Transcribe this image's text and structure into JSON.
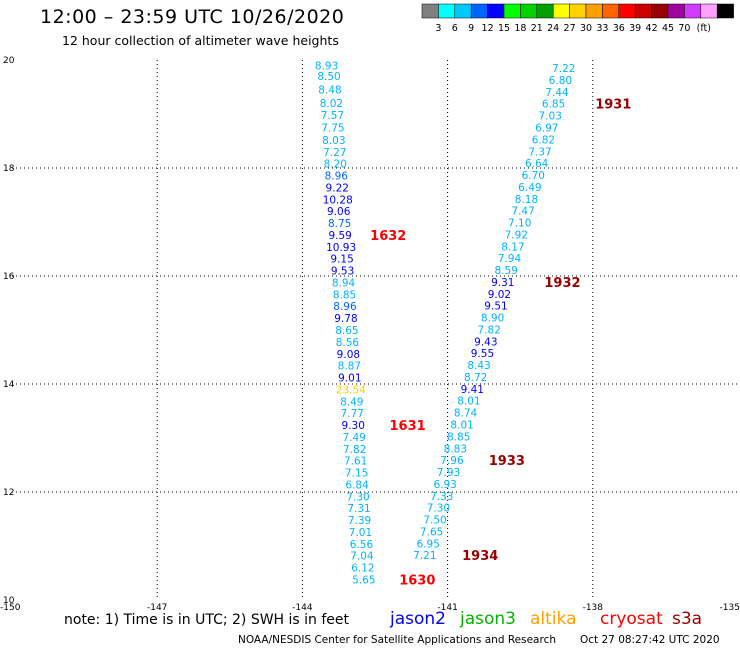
{
  "header": {
    "title": "12:00 – 23:59 UTC 10/26/2020",
    "subtitle": "12 hour collection of altimeter wave heights"
  },
  "colorbar": {
    "unit": "(ft)",
    "labels": [
      "3",
      "6",
      "9",
      "12",
      "15",
      "18",
      "21",
      "24",
      "27",
      "30",
      "33",
      "36",
      "39",
      "42",
      "45",
      "70"
    ],
    "colors": [
      "#808080",
      "#00ffff",
      "#00c8ff",
      "#0064ff",
      "#0000ff",
      "#00ff00",
      "#00d200",
      "#00a000",
      "#ffff00",
      "#ffd200",
      "#ffa000",
      "#ff6400",
      "#ff0000",
      "#c80000",
      "#960000",
      "#a000a0",
      "#d23cff",
      "#ffa0ff",
      "#000000"
    ]
  },
  "footer": {
    "note": "note:  1) Time is in UTC;  2) SWH is in feet",
    "satellites": [
      {
        "name": "jason2",
        "color": "#0000ff"
      },
      {
        "name": "jason3",
        "color": "#00b400"
      },
      {
        "name": "altika",
        "color": "#ffa000"
      },
      {
        "name": "cryosat",
        "color": "#ff0000"
      },
      {
        "name": "s3a",
        "color": "#960000"
      }
    ],
    "credit": "NOAA/NESDIS Center for Satellite Applications and Research",
    "timestamp": "Oct 27 08:27:42 UTC 2020"
  },
  "chart_data": {
    "type": "scatter",
    "xlim": [
      -150,
      -135
    ],
    "ylim": [
      10,
      20
    ],
    "xticks": [
      "-150",
      "-147",
      "-144",
      "-141",
      "-138",
      "-135"
    ],
    "yticks": [
      "10",
      "12",
      "14",
      "16",
      "18",
      "20"
    ],
    "grid": true,
    "points": [
      {
        "x": -143.5,
        "y": 19.9,
        "v": "8.93",
        "c": "#00b4ff"
      },
      {
        "x": -143.45,
        "y": 19.7,
        "v": "8.50",
        "c": "#00b4ff"
      },
      {
        "x": -143.43,
        "y": 19.45,
        "v": "8.48",
        "c": "#00b4ff"
      },
      {
        "x": -143.4,
        "y": 19.2,
        "v": "8.02",
        "c": "#00b4ff"
      },
      {
        "x": -143.38,
        "y": 18.98,
        "v": "7.57",
        "c": "#00b4ff"
      },
      {
        "x": -143.37,
        "y": 18.75,
        "v": "7.75",
        "c": "#00b4ff"
      },
      {
        "x": -143.35,
        "y": 18.52,
        "v": "8.03",
        "c": "#00b4ff"
      },
      {
        "x": -143.33,
        "y": 18.3,
        "v": "7.27",
        "c": "#00b4ff"
      },
      {
        "x": -143.32,
        "y": 18.08,
        "v": "8.20",
        "c": "#00b4ff"
      },
      {
        "x": -143.3,
        "y": 17.86,
        "v": "8.96",
        "c": "#0064ff"
      },
      {
        "x": -143.28,
        "y": 17.64,
        "v": "9.22",
        "c": "#0000ff"
      },
      {
        "x": -143.27,
        "y": 17.42,
        "v": "10.28",
        "c": "#0000ff"
      },
      {
        "x": -143.25,
        "y": 17.2,
        "v": "9.06",
        "c": "#0000ff"
      },
      {
        "x": -143.23,
        "y": 16.98,
        "v": "8.75",
        "c": "#0064ff"
      },
      {
        "x": -143.22,
        "y": 16.76,
        "v": "9.59",
        "c": "#0000ff"
      },
      {
        "x": -143.2,
        "y": 16.54,
        "v": "10.93",
        "c": "#0000ff"
      },
      {
        "x": -143.18,
        "y": 16.32,
        "v": "9.15",
        "c": "#0000ff"
      },
      {
        "x": -143.17,
        "y": 16.1,
        "v": "9.53",
        "c": "#0000ff"
      },
      {
        "x": -143.15,
        "y": 15.88,
        "v": "8.94",
        "c": "#00b4ff"
      },
      {
        "x": -143.13,
        "y": 15.66,
        "v": "8.85",
        "c": "#00b4ff"
      },
      {
        "x": -143.12,
        "y": 15.44,
        "v": "8.96",
        "c": "#0064ff"
      },
      {
        "x": -143.1,
        "y": 15.22,
        "v": "9.78",
        "c": "#0000ff"
      },
      {
        "x": -143.08,
        "y": 15.0,
        "v": "8.65",
        "c": "#00b4ff"
      },
      {
        "x": -143.07,
        "y": 14.78,
        "v": "8.56",
        "c": "#00b4ff"
      },
      {
        "x": -143.05,
        "y": 14.56,
        "v": "9.08",
        "c": "#0000ff"
      },
      {
        "x": -143.03,
        "y": 14.34,
        "v": "8.87",
        "c": "#00b4ff"
      },
      {
        "x": -143.02,
        "y": 14.12,
        "v": "9.01",
        "c": "#0000ff"
      },
      {
        "x": -143.0,
        "y": 13.9,
        "v": "23.54",
        "c": "#ffd200"
      },
      {
        "x": -142.98,
        "y": 13.68,
        "v": "8.49",
        "c": "#00b4ff"
      },
      {
        "x": -142.97,
        "y": 13.46,
        "v": "7.77",
        "c": "#00b4ff"
      },
      {
        "x": -142.95,
        "y": 13.24,
        "v": "9.30",
        "c": "#0000ff"
      },
      {
        "x": -142.93,
        "y": 13.02,
        "v": "7.49",
        "c": "#00b4ff"
      },
      {
        "x": -142.92,
        "y": 12.8,
        "v": "7.82",
        "c": "#00b4ff"
      },
      {
        "x": -142.9,
        "y": 12.58,
        "v": "7.61",
        "c": "#00b4ff"
      },
      {
        "x": -142.88,
        "y": 12.36,
        "v": "7.15",
        "c": "#00b4ff"
      },
      {
        "x": -142.87,
        "y": 12.14,
        "v": "6.84",
        "c": "#00b4ff"
      },
      {
        "x": -142.85,
        "y": 11.92,
        "v": "7.30",
        "c": "#00b4ff"
      },
      {
        "x": -142.83,
        "y": 11.7,
        "v": "7.31",
        "c": "#00b4ff"
      },
      {
        "x": -142.82,
        "y": 11.48,
        "v": "7.39",
        "c": "#00b4ff"
      },
      {
        "x": -142.8,
        "y": 11.26,
        "v": "7.01",
        "c": "#00b4ff"
      },
      {
        "x": -142.78,
        "y": 11.04,
        "v": "6.56",
        "c": "#00b4ff"
      },
      {
        "x": -142.77,
        "y": 10.82,
        "v": "7.04",
        "c": "#00b4ff"
      },
      {
        "x": -142.75,
        "y": 10.6,
        "v": "6.12",
        "c": "#00b4ff"
      },
      {
        "x": -142.73,
        "y": 10.38,
        "v": "5.65",
        "c": "#00b4ff"
      },
      {
        "x": -138.6,
        "y": 19.85,
        "v": "7.22",
        "c": "#00b4ff"
      },
      {
        "x": -138.67,
        "y": 19.63,
        "v": "6.80",
        "c": "#00b4ff"
      },
      {
        "x": -138.74,
        "y": 19.41,
        "v": "7.44",
        "c": "#00b4ff"
      },
      {
        "x": -138.81,
        "y": 19.19,
        "v": "6.85",
        "c": "#00b4ff"
      },
      {
        "x": -138.88,
        "y": 18.97,
        "v": "7.03",
        "c": "#00b4ff"
      },
      {
        "x": -138.95,
        "y": 18.75,
        "v": "6.97",
        "c": "#00b4ff"
      },
      {
        "x": -139.02,
        "y": 18.53,
        "v": "6.82",
        "c": "#00b4ff"
      },
      {
        "x": -139.09,
        "y": 18.31,
        "v": "7.37",
        "c": "#00b4ff"
      },
      {
        "x": -139.16,
        "y": 18.09,
        "v": "6.64",
        "c": "#00b4ff"
      },
      {
        "x": -139.23,
        "y": 17.87,
        "v": "6.70",
        "c": "#00b4ff"
      },
      {
        "x": -139.3,
        "y": 17.65,
        "v": "6.49",
        "c": "#00b4ff"
      },
      {
        "x": -139.37,
        "y": 17.43,
        "v": "8.18",
        "c": "#00b4ff"
      },
      {
        "x": -139.44,
        "y": 17.21,
        "v": "7.47",
        "c": "#00b4ff"
      },
      {
        "x": -139.51,
        "y": 16.99,
        "v": "7.10",
        "c": "#00b4ff"
      },
      {
        "x": -139.58,
        "y": 16.77,
        "v": "7.92",
        "c": "#00b4ff"
      },
      {
        "x": -139.65,
        "y": 16.55,
        "v": "8.17",
        "c": "#00b4ff"
      },
      {
        "x": -139.72,
        "y": 16.33,
        "v": "7.94",
        "c": "#00b4ff"
      },
      {
        "x": -139.79,
        "y": 16.11,
        "v": "8.59",
        "c": "#00b4ff"
      },
      {
        "x": -139.86,
        "y": 15.89,
        "v": "9.31",
        "c": "#0000ff"
      },
      {
        "x": -139.93,
        "y": 15.67,
        "v": "9.02",
        "c": "#0000ff"
      },
      {
        "x": -140.0,
        "y": 15.45,
        "v": "9.51",
        "c": "#0000ff"
      },
      {
        "x": -140.07,
        "y": 15.23,
        "v": "8.90",
        "c": "#00b4ff"
      },
      {
        "x": -140.14,
        "y": 15.01,
        "v": "7.82",
        "c": "#00b4ff"
      },
      {
        "x": -140.21,
        "y": 14.79,
        "v": "9.43",
        "c": "#0000ff"
      },
      {
        "x": -140.28,
        "y": 14.57,
        "v": "9.55",
        "c": "#0000ff"
      },
      {
        "x": -140.35,
        "y": 14.35,
        "v": "8.43",
        "c": "#00b4ff"
      },
      {
        "x": -140.42,
        "y": 14.13,
        "v": "8.72",
        "c": "#00b4ff"
      },
      {
        "x": -140.49,
        "y": 13.91,
        "v": "9.41",
        "c": "#0000ff"
      },
      {
        "x": -140.56,
        "y": 13.69,
        "v": "8.01",
        "c": "#00b4ff"
      },
      {
        "x": -140.63,
        "y": 13.47,
        "v": "8.74",
        "c": "#00b4ff"
      },
      {
        "x": -140.7,
        "y": 13.25,
        "v": "8.01",
        "c": "#00b4ff"
      },
      {
        "x": -140.77,
        "y": 13.03,
        "v": "8.85",
        "c": "#00b4ff"
      },
      {
        "x": -140.84,
        "y": 12.81,
        "v": "8.83",
        "c": "#00b4ff"
      },
      {
        "x": -140.91,
        "y": 12.59,
        "v": "7.96",
        "c": "#00b4ff"
      },
      {
        "x": -140.98,
        "y": 12.37,
        "v": "7.93",
        "c": "#00b4ff"
      },
      {
        "x": -141.05,
        "y": 12.15,
        "v": "6.93",
        "c": "#00b4ff"
      },
      {
        "x": -141.12,
        "y": 11.93,
        "v": "7.33",
        "c": "#00b4ff"
      },
      {
        "x": -141.19,
        "y": 11.71,
        "v": "7.30",
        "c": "#00b4ff"
      },
      {
        "x": -141.26,
        "y": 11.49,
        "v": "7.50",
        "c": "#00b4ff"
      },
      {
        "x": -141.33,
        "y": 11.27,
        "v": "7.65",
        "c": "#00b4ff"
      },
      {
        "x": -141.4,
        "y": 11.05,
        "v": "6.95",
        "c": "#00b4ff"
      },
      {
        "x": -141.47,
        "y": 10.83,
        "v": "7.21",
        "c": "#00b4ff"
      }
    ],
    "annotations": [
      {
        "x": -142.6,
        "y": 16.76,
        "text": "1632",
        "c": "#ff0000"
      },
      {
        "x": -142.2,
        "y": 13.24,
        "text": "1631",
        "c": "#ff0000"
      },
      {
        "x": -142.0,
        "y": 10.38,
        "text": "1630",
        "c": "#ff0000"
      },
      {
        "x": -137.95,
        "y": 19.19,
        "text": "1931",
        "c": "#960000"
      },
      {
        "x": -139.0,
        "y": 15.89,
        "text": "1932",
        "c": "#960000"
      },
      {
        "x": -140.15,
        "y": 12.59,
        "text": "1933",
        "c": "#960000"
      },
      {
        "x": -140.7,
        "y": 10.83,
        "text": "1934",
        "c": "#960000"
      }
    ]
  }
}
